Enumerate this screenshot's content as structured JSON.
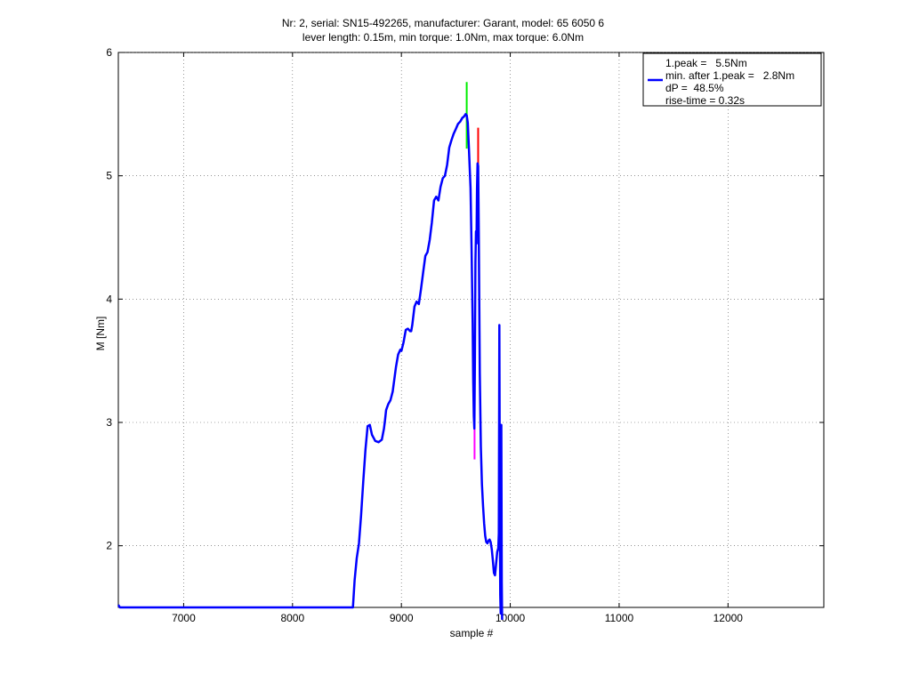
{
  "title_lines": [
    "Nr: 2, serial: SN15-492265, manufacturer: Garant, model: 65 6050 6",
    "lever length: 0.15m, min torque: 1.0Nm, max torque: 6.0Nm"
  ],
  "legend": {
    "lines": [
      "1.peak =   5.5Nm",
      "min. after 1.peak =   2.8Nm",
      "dP =  48.5%",
      "rise-time = 0.32s"
    ]
  },
  "colors": {
    "series": "#0000ff",
    "peak_marker": "#00ee00",
    "min_marker": "#ff00ff",
    "end_marker": "#ff0000",
    "grid": "#555555"
  },
  "chart_data": {
    "type": "line",
    "title": "Nr: 2, serial: SN15-492265, manufacturer: Garant, model: 65 6050 6\nlever length: 0.15m, min torque: 1.0Nm, max torque: 6.0Nm",
    "xlabel": "sample #",
    "ylabel": "M [Nm]",
    "xlim": [
      6400,
      12880
    ],
    "ylim": [
      1.5,
      6
    ],
    "xticks": [
      7000,
      8000,
      9000,
      10000,
      11000,
      12000
    ],
    "yticks": [
      2,
      3,
      4,
      5,
      6
    ],
    "grid": true,
    "grid_style": "dotted",
    "legend_position": "top-right",
    "series": [
      {
        "name": "",
        "x": [
          6400,
          6415,
          8555,
          8570,
          8590,
          8610,
          8630,
          8650,
          8670,
          8690,
          8710,
          8730,
          8760,
          8790,
          8820,
          8840,
          8850,
          8860,
          8880,
          8900,
          8920,
          8950,
          8970,
          8990,
          9000,
          9020,
          9040,
          9060,
          9080,
          9090,
          9100,
          9120,
          9140,
          9160,
          9180,
          9200,
          9220,
          9240,
          9260,
          9280,
          9300,
          9320,
          9340,
          9360,
          9380,
          9400,
          9420,
          9440,
          9460,
          9480,
          9500,
          9520,
          9540,
          9560,
          9575,
          9590,
          9600,
          9610,
          9620,
          9635,
          9645,
          9655,
          9660,
          9665,
          9670,
          9675,
          9680,
          9685,
          9690,
          9695,
          9700,
          9705,
          9710,
          9720,
          9730,
          9740,
          9750,
          9760,
          9770,
          9780,
          9790,
          9800,
          9810,
          9820,
          9830,
          9840,
          9850,
          9860,
          9870,
          9880,
          9890,
          9895,
          9900,
          9905,
          9908,
          9912,
          9915,
          9918,
          9922,
          9925
        ],
        "y": [
          1.52,
          1.5,
          1.5,
          1.72,
          1.9,
          2.02,
          2.25,
          2.52,
          2.78,
          2.97,
          2.98,
          2.9,
          2.85,
          2.84,
          2.86,
          2.95,
          3.02,
          3.1,
          3.15,
          3.18,
          3.25,
          3.45,
          3.55,
          3.59,
          3.58,
          3.65,
          3.75,
          3.76,
          3.74,
          3.74,
          3.79,
          3.94,
          3.98,
          3.96,
          4.08,
          4.22,
          4.35,
          4.38,
          4.48,
          4.62,
          4.8,
          4.83,
          4.8,
          4.91,
          4.98,
          5.0,
          5.09,
          5.23,
          5.29,
          5.34,
          5.38,
          5.42,
          5.44,
          5.47,
          5.48,
          5.5,
          5.49,
          5.43,
          5.22,
          4.9,
          4.4,
          3.8,
          3.35,
          3.05,
          2.95,
          3.5,
          4.3,
          4.55,
          4.45,
          4.9,
          5.1,
          5.08,
          4.6,
          3.4,
          2.8,
          2.5,
          2.32,
          2.18,
          2.08,
          2.03,
          2.02,
          2.04,
          2.05,
          2.03,
          1.97,
          1.88,
          1.78,
          1.76,
          1.85,
          1.95,
          1.98,
          2.1,
          3.79,
          2.2,
          1.6,
          1.45,
          2.0,
          2.98,
          1.7,
          1.4
        ]
      }
    ],
    "markers": [
      {
        "name": "peak",
        "x": 9600,
        "y_range": [
          5.22,
          5.76
        ],
        "color": "#00ee00"
      },
      {
        "name": "min-after-peak",
        "x": 9672,
        "y_range": [
          2.7,
          3.05
        ],
        "color": "#ff00ff"
      },
      {
        "name": "end",
        "x": 9705,
        "y_range": [
          4.95,
          5.39
        ],
        "color": "#ff0000"
      }
    ]
  }
}
